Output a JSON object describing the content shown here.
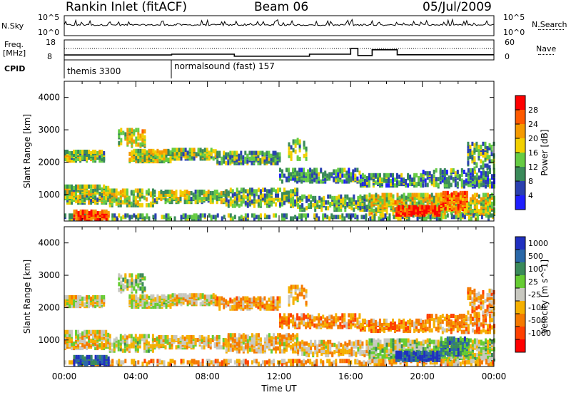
{
  "header": {
    "title": "Rankin Inlet (fitACF)",
    "beam": "Beam 06",
    "date": "05/Jul/2009"
  },
  "strip_labels": {
    "nsky": "N.Sky",
    "nsky_hi": "10^5",
    "nsky_lo": "10^0",
    "nsky_r_hi": "10^5",
    "nsky_r_lo": "10^0",
    "nsearch": "N.Search",
    "freq_line1": "Freq.",
    "freq_line2": "[MHz]",
    "freq_hi": "18",
    "freq_lo": "8",
    "nave_hi": "60",
    "nave_lo": "0",
    "nave": "Nave",
    "cpid": "CPID"
  },
  "cpid_segments": [
    {
      "label": "themis 3300",
      "start_h": 0
    },
    {
      "label": "normalsound (fast) 157",
      "start_h": 6
    }
  ],
  "chart_data": [
    {
      "type": "heatmap",
      "name": "power",
      "ylabel": "Slant Range [km]",
      "yticks": [
        "1000",
        "2000",
        "3000",
        "4000"
      ],
      "ylim": [
        180,
        4500
      ],
      "xlim": [
        0,
        24
      ],
      "colorbar_label": "Power [dB]",
      "colorbar_ticks": [
        "4",
        "8",
        "12",
        "16",
        "20",
        "24",
        "28"
      ],
      "colorbar_colors": [
        "#1f1fff",
        "#2a40b0",
        "#3a8a5a",
        "#66cc44",
        "#f2d000",
        "#f59a00",
        "#ff5a00",
        "#ff0000"
      ]
    },
    {
      "type": "heatmap",
      "name": "velocity",
      "ylabel": "Slant Range [km]",
      "yticks": [
        "1000",
        "2000",
        "3000",
        "4000"
      ],
      "ylim": [
        180,
        4500
      ],
      "xlim": [
        0,
        24
      ],
      "xlabel": "Time UT",
      "xticks": [
        "00:00",
        "04:00",
        "08:00",
        "12:00",
        "16:00",
        "20:00",
        "00:00"
      ],
      "colorbar_label": "Velocity [m s^-1]",
      "colorbar_ticks": [
        "1000",
        "500",
        "100",
        "25",
        "-25",
        "-100",
        "-500",
        "-1000"
      ],
      "colorbar_colors": [
        "#2030c0",
        "#2a68a8",
        "#3a8a5a",
        "#66cc33",
        "#c8c8c0",
        "#f5b000",
        "#f57a00",
        "#ff4000",
        "#ff0000"
      ]
    }
  ],
  "freq_trace": {
    "hours": [
      0,
      6,
      6,
      9.5,
      9.5,
      13.7,
      13.7,
      16.0,
      16.0,
      16.4,
      16.4,
      17.2,
      17.2,
      18.6,
      18.6,
      24
    ],
    "mhz": [
      11.9,
      11.9,
      12.3,
      12.3,
      11.3,
      11.3,
      12.3,
      12.3,
      15.2,
      15.2,
      11.6,
      11.6,
      14.5,
      14.5,
      12.0,
      12.0
    ]
  }
}
